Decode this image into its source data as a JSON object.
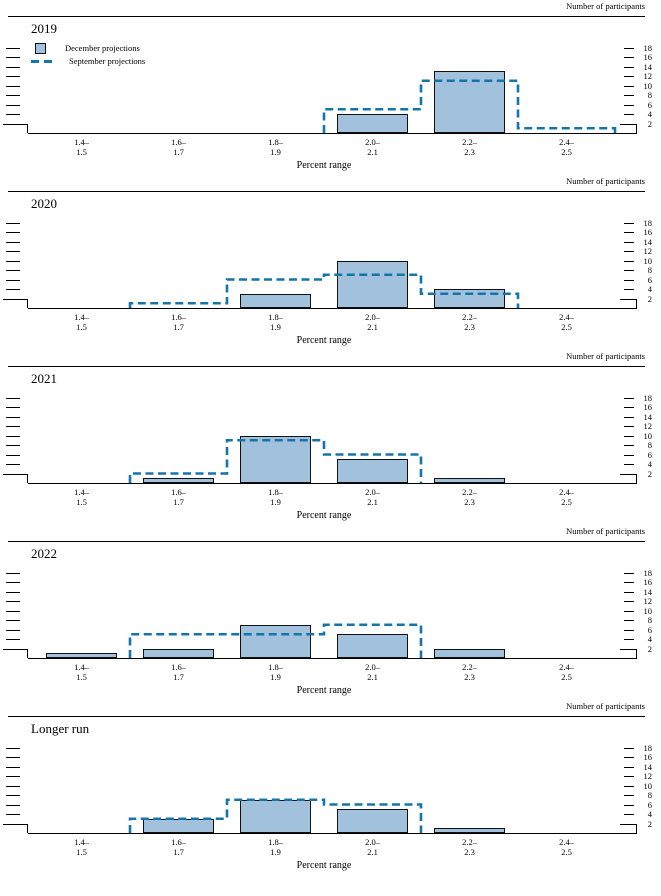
{
  "page": {
    "right_axis_label": "Number of participants",
    "x_axis_label": "Percent range"
  },
  "legend": {
    "items": [
      {
        "label": "December projections",
        "swatch": "filled-bar-square"
      },
      {
        "label": "September projections",
        "swatch": "dashed-line"
      }
    ]
  },
  "colors": {
    "bar_fill": "#a2c1dd",
    "bar_border": "#111111",
    "dash": "#1575ab",
    "axis": "#000000",
    "text": "#000000"
  },
  "chart_data": [
    {
      "type": "bar",
      "title": "2019",
      "categories": [
        "1.4–1.5",
        "1.6–1.7",
        "1.8–1.9",
        "2.0–2.1",
        "2.2–2.3",
        "2.4–2.5"
      ],
      "series": [
        {
          "name": "December projections",
          "style": "filled-bar",
          "values": [
            0,
            0,
            0,
            4,
            13,
            0
          ]
        },
        {
          "name": "September projections",
          "style": "dashed-step",
          "values": [
            0,
            0,
            0,
            5,
            11,
            1
          ]
        }
      ],
      "xlabel": "Percent range",
      "ylabel": "Number of participants",
      "ylim": [
        0,
        19
      ],
      "yticks": [
        2,
        4,
        6,
        8,
        10,
        12,
        14,
        16,
        18
      ],
      "grid": false,
      "legend_position": "top-left"
    },
    {
      "type": "bar",
      "title": "2020",
      "categories": [
        "1.4–1.5",
        "1.6–1.7",
        "1.8–1.9",
        "2.0–2.1",
        "2.2–2.3",
        "2.4–2.5"
      ],
      "series": [
        {
          "name": "December projections",
          "style": "filled-bar",
          "values": [
            0,
            0,
            3,
            10,
            4,
            0
          ]
        },
        {
          "name": "September projections",
          "style": "dashed-step",
          "values": [
            0,
            1,
            6,
            7,
            3,
            0
          ]
        }
      ],
      "xlabel": "Percent range",
      "ylabel": "Number of participants",
      "ylim": [
        0,
        19
      ],
      "yticks": [
        2,
        4,
        6,
        8,
        10,
        12,
        14,
        16,
        18
      ],
      "grid": false,
      "legend_position": "none"
    },
    {
      "type": "bar",
      "title": "2021",
      "categories": [
        "1.4–1.5",
        "1.6–1.7",
        "1.8–1.9",
        "2.0–2.1",
        "2.2–2.3",
        "2.4–2.5"
      ],
      "series": [
        {
          "name": "December projections",
          "style": "filled-bar",
          "values": [
            0,
            1,
            10,
            5,
            1,
            0
          ]
        },
        {
          "name": "September projections",
          "style": "dashed-step",
          "values": [
            0,
            2,
            9,
            6,
            0,
            0
          ]
        }
      ],
      "xlabel": "Percent range",
      "ylabel": "Number of participants",
      "ylim": [
        0,
        19
      ],
      "yticks": [
        2,
        4,
        6,
        8,
        10,
        12,
        14,
        16,
        18
      ],
      "grid": false,
      "legend_position": "none"
    },
    {
      "type": "bar",
      "title": "2022",
      "categories": [
        "1.4–1.5",
        "1.6–1.7",
        "1.8–1.9",
        "2.0–2.1",
        "2.2–2.3",
        "2.4–2.5"
      ],
      "series": [
        {
          "name": "December projections",
          "style": "filled-bar",
          "values": [
            1,
            2,
            7,
            5,
            2,
            0
          ]
        },
        {
          "name": "September projections",
          "style": "dashed-step",
          "values": [
            0,
            5,
            5,
            7,
            0,
            0
          ]
        }
      ],
      "xlabel": "Percent range",
      "ylabel": "Number of participants",
      "ylim": [
        0,
        19
      ],
      "yticks": [
        2,
        4,
        6,
        8,
        10,
        12,
        14,
        16,
        18
      ],
      "grid": false,
      "legend_position": "none"
    },
    {
      "type": "bar",
      "title": "Longer run",
      "categories": [
        "1.4–1.5",
        "1.6–1.7",
        "1.8–1.9",
        "2.0–2.1",
        "2.2–2.3",
        "2.4–2.5"
      ],
      "series": [
        {
          "name": "December projections",
          "style": "filled-bar",
          "values": [
            0,
            3,
            7,
            5,
            1,
            0
          ]
        },
        {
          "name": "September projections",
          "style": "dashed-step",
          "values": [
            0,
            3,
            7,
            6,
            0,
            0
          ]
        }
      ],
      "xlabel": "Percent range",
      "ylabel": "Number of participants",
      "ylim": [
        0,
        19
      ],
      "yticks": [
        2,
        4,
        6,
        8,
        10,
        12,
        14,
        16,
        18
      ],
      "grid": false,
      "legend_position": "none"
    }
  ]
}
